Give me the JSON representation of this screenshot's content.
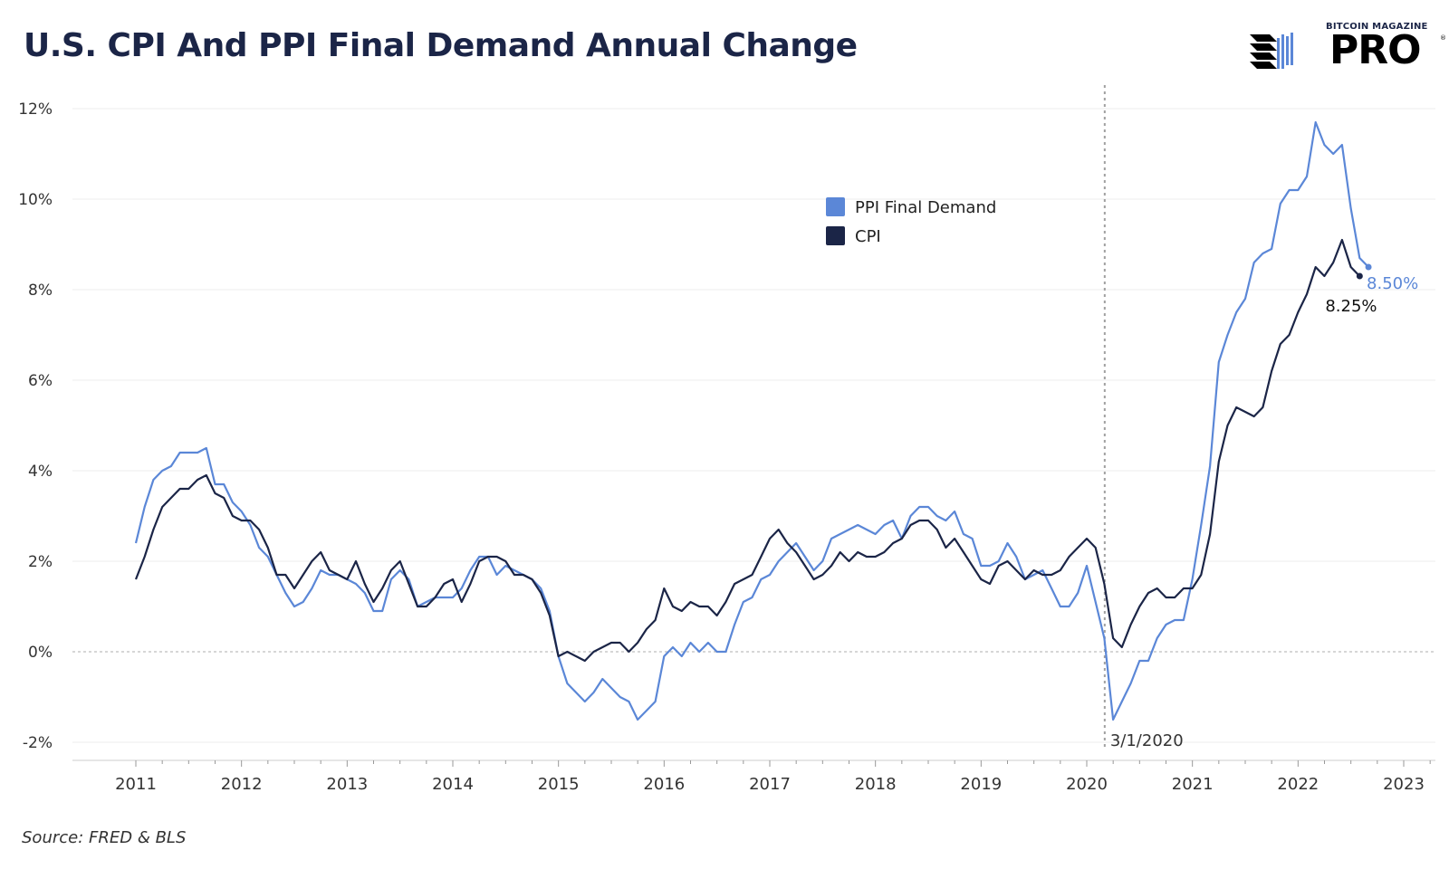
{
  "header": {
    "title": "U.S. CPI And PPI Final Demand Annual Change"
  },
  "logo": {
    "top_text": "BITCOIN MAGAZINE",
    "main_text": "PRO",
    "reg": "®",
    "icon": "bitcoin-magazine-logo-icon"
  },
  "footer": {
    "source": "Source: FRED & BLS"
  },
  "colors": {
    "ppi": "#5b87d7",
    "cpi": "#1b2547",
    "grid": "#ececec",
    "zero": "#bdbdbd",
    "vline": "#a0a0a0",
    "axis_text": "#333333"
  },
  "chart_data": {
    "type": "line",
    "title": "U.S. CPI And PPI Final Demand Annual Change",
    "xlabel": "",
    "ylabel": "",
    "xlim": [
      2010.4,
      2023.3
    ],
    "ylim": [
      -2.4,
      12.6
    ],
    "y_ticks": [
      -2,
      0,
      2,
      4,
      6,
      8,
      10,
      12
    ],
    "y_tick_labels": [
      "-2%",
      "0%",
      "2%",
      "4%",
      "6%",
      "8%",
      "10%",
      "12%"
    ],
    "x_ticks": [
      2011,
      2012,
      2013,
      2014,
      2015,
      2016,
      2017,
      2018,
      2019,
      2020,
      2021,
      2022,
      2023
    ],
    "x_tick_labels": [
      "2011",
      "2012",
      "2013",
      "2014",
      "2015",
      "2016",
      "2017",
      "2018",
      "2019",
      "2020",
      "2021",
      "2022",
      "2023"
    ],
    "grid": true,
    "legend_position": "top-center",
    "annotation": {
      "date": 2020.17,
      "label": "3/1/2020"
    },
    "end_labels": {
      "PPI Final Demand": "8.50%",
      "CPI": "8.25%"
    },
    "x_start": 2011.0,
    "x_step": 0.08333,
    "series": [
      {
        "name": "PPI Final Demand",
        "values": [
          2.4,
          3.2,
          3.8,
          4.0,
          4.1,
          4.4,
          4.4,
          4.4,
          4.5,
          3.7,
          3.7,
          3.3,
          3.1,
          2.8,
          2.3,
          2.1,
          1.7,
          1.3,
          1.0,
          1.1,
          1.4,
          1.8,
          1.7,
          1.7,
          1.6,
          1.5,
          1.3,
          0.9,
          0.9,
          1.6,
          1.8,
          1.6,
          1.0,
          1.1,
          1.2,
          1.2,
          1.2,
          1.4,
          1.8,
          2.1,
          2.1,
          1.7,
          1.9,
          1.8,
          1.7,
          1.6,
          1.4,
          0.9,
          -0.1,
          -0.7,
          -0.9,
          -1.1,
          -0.9,
          -0.6,
          -0.8,
          -1.0,
          -1.1,
          -1.5,
          -1.3,
          -1.1,
          -0.1,
          0.1,
          -0.1,
          0.2,
          0.0,
          0.2,
          0.0,
          0.0,
          0.6,
          1.1,
          1.2,
          1.6,
          1.7,
          2.0,
          2.2,
          2.4,
          2.1,
          1.8,
          2.0,
          2.5,
          2.6,
          2.7,
          2.8,
          2.7,
          2.6,
          2.8,
          2.9,
          2.5,
          3.0,
          3.2,
          3.2,
          3.0,
          2.9,
          3.1,
          2.6,
          2.5,
          1.9,
          1.9,
          2.0,
          2.4,
          2.1,
          1.6,
          1.7,
          1.8,
          1.4,
          1.0,
          1.0,
          1.3,
          1.9,
          1.1,
          0.3,
          -1.5,
          -1.1,
          -0.7,
          -0.2,
          -0.2,
          0.3,
          0.6,
          0.7,
          0.7,
          1.6,
          2.8,
          4.1,
          6.4,
          7.0,
          7.5,
          7.8,
          8.6,
          8.8,
          8.9,
          9.9,
          10.2,
          10.2,
          10.5,
          11.7,
          11.2,
          11.0,
          11.2,
          9.8,
          8.7,
          8.5
        ]
      },
      {
        "name": "CPI",
        "values": [
          1.6,
          2.1,
          2.7,
          3.2,
          3.4,
          3.6,
          3.6,
          3.8,
          3.9,
          3.5,
          3.4,
          3.0,
          2.9,
          2.9,
          2.7,
          2.3,
          1.7,
          1.7,
          1.4,
          1.7,
          2.0,
          2.2,
          1.8,
          1.7,
          1.6,
          2.0,
          1.5,
          1.1,
          1.4,
          1.8,
          2.0,
          1.5,
          1.0,
          1.0,
          1.2,
          1.5,
          1.6,
          1.1,
          1.5,
          2.0,
          2.1,
          2.1,
          2.0,
          1.7,
          1.7,
          1.6,
          1.3,
          0.8,
          -0.1,
          0.0,
          -0.1,
          -0.2,
          0.0,
          0.1,
          0.2,
          0.2,
          0.0,
          0.2,
          0.5,
          0.7,
          1.4,
          1.0,
          0.9,
          1.1,
          1.0,
          1.0,
          0.8,
          1.1,
          1.5,
          1.6,
          1.7,
          2.1,
          2.5,
          2.7,
          2.4,
          2.2,
          1.9,
          1.6,
          1.7,
          1.9,
          2.2,
          2.0,
          2.2,
          2.1,
          2.1,
          2.2,
          2.4,
          2.5,
          2.8,
          2.9,
          2.9,
          2.7,
          2.3,
          2.5,
          2.2,
          1.9,
          1.6,
          1.5,
          1.9,
          2.0,
          1.8,
          1.6,
          1.8,
          1.7,
          1.7,
          1.8,
          2.1,
          2.3,
          2.5,
          2.3,
          1.5,
          0.3,
          0.1,
          0.6,
          1.0,
          1.3,
          1.4,
          1.2,
          1.2,
          1.4,
          1.4,
          1.7,
          2.6,
          4.2,
          5.0,
          5.4,
          5.3,
          5.2,
          5.4,
          6.2,
          6.8,
          7.0,
          7.5,
          7.9,
          8.5,
          8.3,
          8.6,
          9.1,
          8.5,
          8.3
        ]
      }
    ]
  }
}
